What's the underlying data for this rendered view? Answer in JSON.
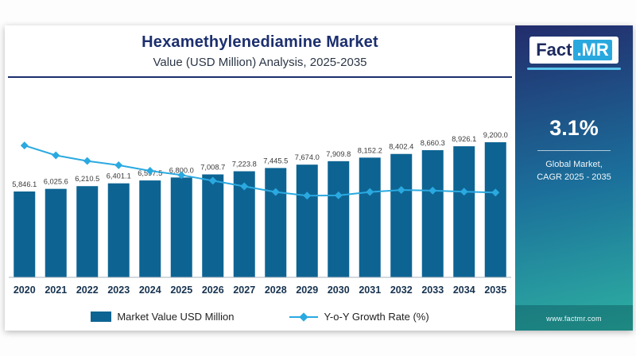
{
  "header": {
    "title": "Hexamethylenediamine Market",
    "subtitle": "Value (USD Million) Analysis, 2025-2035"
  },
  "chart_data": {
    "type": "bar",
    "categories": [
      "2020",
      "2021",
      "2022",
      "2023",
      "2024",
      "2025",
      "2026",
      "2027",
      "2028",
      "2029",
      "2030",
      "2031",
      "2032",
      "2033",
      "2034",
      "2035"
    ],
    "series": [
      {
        "name": "Market Value USD Million",
        "type": "bar",
        "color": "#0d6493",
        "values": [
          5846.1,
          6025.6,
          6210.5,
          6401.1,
          6597.5,
          6800.0,
          7008.7,
          7223.8,
          7445.5,
          7674.0,
          7909.8,
          8152.2,
          8402.4,
          8660.3,
          8926.1,
          9200.0
        ]
      },
      {
        "name": "Y-o-Y Growth Rate (%)",
        "type": "line",
        "color": "#2aa9e0",
        "values": [
          4.5,
          4.15,
          3.95,
          3.8,
          3.6,
          3.45,
          3.25,
          3.05,
          2.85,
          2.72,
          2.73,
          2.85,
          2.92,
          2.9,
          2.86,
          2.83
        ],
        "estimated": true
      }
    ],
    "value_labels": [
      "5,846.1",
      "6,025.6",
      "6,210.5",
      "6,401.1",
      "6,597.5",
      "6,800.0",
      "7,008.7",
      "7,223.8",
      "7,445.5",
      "7,674.0",
      "7,909.8",
      "8,152.2",
      "8,402.4",
      "8,660.3",
      "8,926.1",
      "9,200.0"
    ],
    "title": "Hexamethylenediamine Market Value (USD Million) Analysis, 2025-2035",
    "xlabel": "",
    "ylabel": "",
    "ylim": [
      0,
      9200
    ],
    "grid": false,
    "legend_position": "bottom"
  },
  "legend": {
    "bar_label": "Market Value USD Million",
    "line_label": "Y-o-Y Growth Rate (%)"
  },
  "sidebar": {
    "logo": {
      "part1": "Fact",
      "part2": ".MR"
    },
    "cagr_value": "3.1%",
    "cagr_caption_line1": "Global Market,",
    "cagr_caption_line2": "CAGR 2025 - 2035",
    "website": "www.factmr.com",
    "gradient_top": "#232c6c",
    "gradient_bottom": "#2eb1a1"
  },
  "colors": {
    "title_navy": "#1c2f6e",
    "bar": "#0d6493",
    "line": "#2aa9e0",
    "axis": "#aab3bc",
    "value_label": "#3a3a3a",
    "x_label": "#16324f"
  }
}
